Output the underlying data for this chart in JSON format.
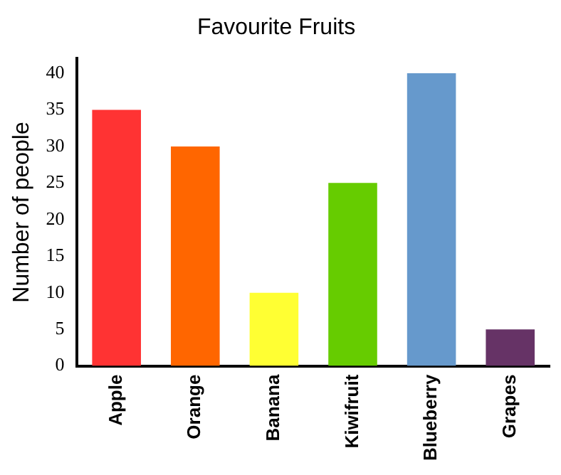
{
  "chart_data": {
    "type": "bar",
    "title": "Favourite Fruits",
    "ylabel": "Number of people",
    "categories": [
      "Apple",
      "Orange",
      "Banana",
      "Kiwifruit",
      "Blueberry",
      "Grapes"
    ],
    "values": [
      35,
      30,
      10,
      25,
      40,
      5
    ],
    "colors": [
      "#ff3333",
      "#ff6600",
      "#ffff33",
      "#66cc00",
      "#6699cc",
      "#663366"
    ],
    "ylim": [
      0,
      42
    ],
    "yticks": [
      0,
      5,
      10,
      15,
      20,
      25,
      30,
      35,
      40
    ],
    "grid": false,
    "legend": false
  }
}
